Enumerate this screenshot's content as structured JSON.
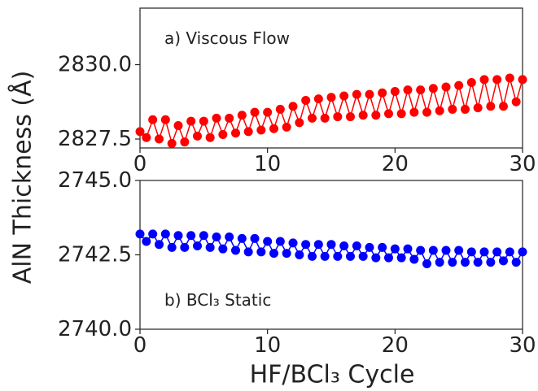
{
  "ylabel": "AlN Thickness (Å)",
  "xlabel": "HF/BCl₃ Cycle",
  "chart_data": [
    {
      "type": "line",
      "label": "a) Viscous Flow",
      "color": "#ff0000",
      "marker": "circle",
      "xlim": [
        0,
        30
      ],
      "ylim": [
        2827.2,
        2831.9
      ],
      "xticks": [
        0,
        10,
        20,
        30
      ],
      "xtick_labels": [
        "0",
        "10",
        "20",
        "30"
      ],
      "yticks": [
        2827.5,
        2830.0
      ],
      "ytick_labels": [
        "2827.5",
        "2830.0"
      ],
      "x": [
        0,
        0.5,
        1,
        1.5,
        2,
        2.5,
        3,
        3.5,
        4,
        4.5,
        5,
        5.5,
        6,
        6.5,
        7,
        7.5,
        8,
        8.5,
        9,
        9.5,
        10,
        10.5,
        11,
        11.5,
        12,
        12.5,
        13,
        13.5,
        14,
        14.5,
        15,
        15.5,
        16,
        16.5,
        17,
        17.5,
        18,
        18.5,
        19,
        19.5,
        20,
        20.5,
        21,
        21.5,
        22,
        22.5,
        23,
        23.5,
        24,
        24.5,
        25,
        25.5,
        26,
        26.5,
        27,
        27.5,
        28,
        28.5,
        29,
        29.5,
        30
      ],
      "y": [
        2827.75,
        2827.55,
        2828.15,
        2827.5,
        2828.15,
        2827.35,
        2827.95,
        2827.4,
        2828.1,
        2827.6,
        2828.1,
        2827.55,
        2828.2,
        2827.65,
        2828.2,
        2827.7,
        2828.3,
        2827.75,
        2828.4,
        2827.8,
        2828.4,
        2827.85,
        2828.5,
        2827.9,
        2828.6,
        2828.05,
        2828.8,
        2828.2,
        2828.85,
        2828.2,
        2828.9,
        2828.25,
        2828.95,
        2828.25,
        2829.0,
        2828.3,
        2829.0,
        2828.3,
        2829.05,
        2828.35,
        2829.1,
        2828.35,
        2829.15,
        2828.4,
        2829.15,
        2828.4,
        2829.2,
        2828.45,
        2829.25,
        2828.5,
        2829.3,
        2828.5,
        2829.4,
        2828.55,
        2829.5,
        2828.6,
        2829.5,
        2828.6,
        2829.55,
        2828.75,
        2829.5
      ]
    },
    {
      "type": "line",
      "label": "b) BCl₃ Static",
      "color": "#0000ff",
      "marker": "circle",
      "xlim": [
        0,
        30
      ],
      "ylim": [
        2740.0,
        2745.0
      ],
      "xticks": [
        0,
        10,
        20,
        30
      ],
      "xtick_labels": [
        "0",
        "10",
        "20",
        "30"
      ],
      "yticks": [
        2740.0,
        2742.5,
        2745.0
      ],
      "ytick_labels": [
        "2740.0",
        "2742.5",
        "2745.0"
      ],
      "x": [
        0,
        0.5,
        1,
        1.5,
        2,
        2.5,
        3,
        3.5,
        4,
        4.5,
        5,
        5.5,
        6,
        6.5,
        7,
        7.5,
        8,
        8.5,
        9,
        9.5,
        10,
        10.5,
        11,
        11.5,
        12,
        12.5,
        13,
        13.5,
        14,
        14.5,
        15,
        15.5,
        16,
        16.5,
        17,
        17.5,
        18,
        18.5,
        19,
        19.5,
        20,
        20.5,
        21,
        21.5,
        22,
        22.5,
        23,
        23.5,
        24,
        24.5,
        25,
        25.5,
        26,
        26.5,
        27,
        27.5,
        28,
        28.5,
        29,
        29.5,
        30
      ],
      "y": [
        2743.2,
        2742.95,
        2743.2,
        2742.85,
        2743.2,
        2742.75,
        2743.15,
        2742.75,
        2743.15,
        2742.8,
        2743.15,
        2742.75,
        2743.1,
        2742.7,
        2743.1,
        2742.65,
        2743.05,
        2742.6,
        2743.05,
        2742.6,
        2742.95,
        2742.55,
        2742.95,
        2742.55,
        2742.9,
        2742.5,
        2742.85,
        2742.45,
        2742.85,
        2742.45,
        2742.85,
        2742.45,
        2742.8,
        2742.45,
        2742.8,
        2742.45,
        2742.75,
        2742.4,
        2742.75,
        2742.4,
        2742.7,
        2742.4,
        2742.7,
        2742.35,
        2742.65,
        2742.2,
        2742.65,
        2742.25,
        2742.65,
        2742.25,
        2742.65,
        2742.25,
        2742.6,
        2742.25,
        2742.6,
        2742.25,
        2742.6,
        2742.3,
        2742.6,
        2742.25,
        2742.6
      ]
    }
  ]
}
